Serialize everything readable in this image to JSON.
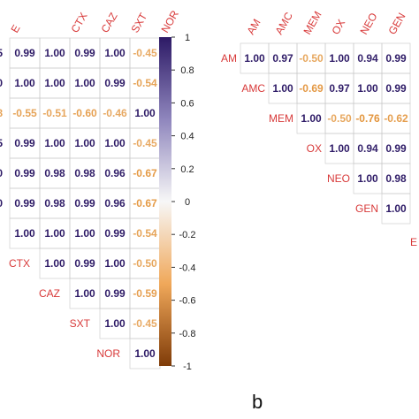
{
  "chart_data": [
    {
      "type": "heatmap",
      "panel_label": "",
      "columns": [
        "E",
        "CTX",
        "CAZ",
        "SXT",
        "NOR"
      ],
      "rows": [
        {
          "label": "",
          "values": [
            0.99,
            1.0,
            0.99,
            1.0,
            -0.45
          ]
        },
        {
          "label": "",
          "values": [
            1.0,
            1.0,
            1.0,
            0.99,
            -0.54
          ]
        },
        {
          "label": "",
          "values": [
            -0.55,
            -0.51,
            -0.6,
            -0.46,
            1.0
          ]
        },
        {
          "label": "",
          "values": [
            0.99,
            1.0,
            1.0,
            1.0,
            -0.45
          ]
        },
        {
          "label": "",
          "values": [
            0.99,
            0.98,
            0.98,
            0.96,
            -0.67
          ]
        },
        {
          "label": "",
          "values": [
            0.99,
            0.98,
            0.99,
            0.96,
            -0.67
          ]
        },
        {
          "label": "",
          "values": [
            1.0,
            1.0,
            1.0,
            0.99,
            -0.54
          ]
        },
        {
          "label": "CTX",
          "values": [
            null,
            1.0,
            0.99,
            1.0,
            -0.5
          ]
        },
        {
          "label": "CAZ",
          "values": [
            null,
            null,
            1.0,
            0.99,
            -0.59
          ]
        },
        {
          "label": "SXT",
          "values": [
            null,
            null,
            null,
            1.0,
            -0.45
          ]
        },
        {
          "label": "NOR",
          "values": [
            null,
            null,
            null,
            null,
            1.0
          ]
        }
      ],
      "partial_value_prefix": [
        "5",
        "0",
        "8",
        "5",
        "0",
        "0",
        ""
      ],
      "colorbar": {
        "range": [
          -1,
          1
        ],
        "ticks": [
          "1",
          "0.8",
          "0.6",
          "0.4",
          "0.2",
          "0",
          "-0.2",
          "-0.4",
          "-0.6",
          "-0.8",
          "-1"
        ],
        "tick_values": [
          1,
          0.8,
          0.6,
          0.4,
          0.2,
          0,
          -0.2,
          -0.4,
          -0.6,
          -0.8,
          -1
        ]
      },
      "colors": {
        "positive": "#2d1a66",
        "negative": "#e0841c",
        "mid": "#f7f7f7",
        "label": "#d83a3a"
      }
    },
    {
      "type": "heatmap",
      "panel_label": "b",
      "columns": [
        "AM",
        "AMC",
        "MEM",
        "OX",
        "NEO",
        "GEN"
      ],
      "rows": [
        {
          "label": "AM",
          "values": [
            1.0,
            0.97,
            -0.5,
            1.0,
            0.94,
            0.99
          ]
        },
        {
          "label": "AMC",
          "values": [
            null,
            1.0,
            -0.69,
            0.97,
            1.0,
            0.99
          ]
        },
        {
          "label": "MEM",
          "values": [
            null,
            null,
            1.0,
            -0.5,
            -0.76,
            -0.62
          ]
        },
        {
          "label": "OX",
          "values": [
            null,
            null,
            null,
            1.0,
            0.94,
            0.99
          ]
        },
        {
          "label": "NEO",
          "values": [
            null,
            null,
            null,
            null,
            1.0,
            0.98
          ]
        },
        {
          "label": "GEN",
          "values": [
            null,
            null,
            null,
            null,
            null,
            1.0
          ]
        }
      ],
      "last_row_label_partial": "E"
    }
  ]
}
